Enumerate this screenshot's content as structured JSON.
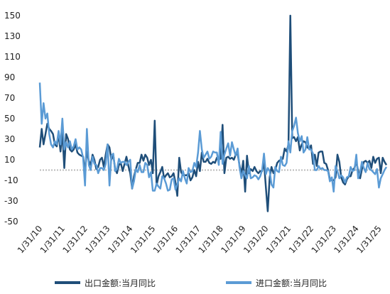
{
  "chart_data": {
    "type": "line",
    "categories": [
      "1/31/10",
      null,
      null,
      null,
      null,
      null,
      null,
      null,
      null,
      null,
      null,
      null,
      "1/31/11",
      null,
      null,
      null,
      null,
      null,
      null,
      null,
      null,
      null,
      null,
      null,
      "1/31/12",
      null,
      null,
      null,
      null,
      null,
      null,
      null,
      null,
      null,
      null,
      null,
      "1/31/13",
      null,
      null,
      null,
      null,
      null,
      null,
      null,
      null,
      null,
      null,
      null,
      "1/31/14",
      null,
      null,
      null,
      null,
      null,
      null,
      null,
      null,
      null,
      null,
      null,
      "1/31/15",
      null,
      null,
      null,
      null,
      null,
      null,
      null,
      null,
      null,
      null,
      null,
      "1/31/16",
      null,
      null,
      null,
      null,
      null,
      null,
      null,
      null,
      null,
      null,
      null,
      "1/31/17",
      null,
      null,
      null,
      null,
      null,
      null,
      null,
      null,
      null,
      null,
      null,
      "1/31/18",
      null,
      null,
      null,
      null,
      null,
      null,
      null,
      null,
      null,
      null,
      null,
      "1/31/19",
      null,
      null,
      null,
      null,
      null,
      null,
      null,
      null,
      null,
      null,
      null,
      "1/31/20",
      null,
      null,
      null,
      null,
      null,
      null,
      null,
      null,
      null,
      null,
      null,
      "1/31/21",
      null,
      null,
      null,
      null,
      null,
      null,
      null,
      null,
      null,
      null,
      null,
      "1/31/22",
      null,
      null,
      null,
      null,
      null,
      null,
      null,
      null,
      null,
      null,
      null,
      "1/31/23",
      null,
      null,
      null,
      null,
      null,
      null,
      null,
      null,
      null,
      null,
      null,
      "1/31/24",
      null,
      null,
      null,
      null,
      null,
      null,
      null,
      null,
      null,
      null,
      null,
      "1/31/25",
      null,
      null,
      null,
      null
    ],
    "series": [
      {
        "name": "出口金额:当月同比",
        "color": "#1f4e79",
        "values": [
          22,
          40,
          25,
          35,
          45,
          40,
          38,
          35,
          25,
          23,
          35,
          18,
          37,
          2,
          35,
          30,
          20,
          18,
          20,
          25,
          17,
          15,
          14,
          13,
          -1,
          18,
          9,
          5,
          15,
          10,
          1,
          3,
          10,
          12,
          3,
          15,
          25,
          22,
          10,
          15,
          1,
          -3,
          5,
          7,
          -1,
          6,
          13,
          4,
          -3,
          -18,
          -6,
          1,
          7,
          7,
          15,
          9,
          15,
          12,
          5,
          10,
          -3,
          48,
          -15,
          -6,
          -2,
          3,
          -8,
          -5,
          -3,
          -7,
          -6,
          -3,
          -12,
          -25,
          12,
          -2,
          -5,
          -5,
          -5,
          -3,
          -10,
          -7,
          0,
          -6,
          8,
          -1,
          17,
          8,
          8,
          11,
          7,
          6,
          8,
          7,
          12,
          11,
          11,
          44,
          -3,
          12,
          13,
          11,
          12,
          10,
          15,
          16,
          5,
          -4,
          9,
          -21,
          14,
          -3,
          1,
          -1,
          3,
          -1,
          -3,
          -1,
          -1,
          8,
          -17,
          -40,
          -7,
          3,
          -3,
          0,
          7,
          9,
          10,
          11,
          21,
          18,
          25,
          150,
          31,
          32,
          28,
          32,
          19,
          25,
          28,
          27,
          22,
          21,
          24,
          6,
          15,
          4,
          17,
          18,
          18,
          7,
          6,
          0,
          -9,
          -10,
          -10,
          -7,
          15,
          8,
          -7,
          -12,
          -14,
          -9,
          -6,
          -6,
          0,
          2,
          8,
          -1,
          -8,
          1,
          8,
          9,
          7,
          9,
          2,
          13,
          7,
          11,
          12,
          -3,
          12,
          8,
          5
        ]
      },
      {
        "name": "进口金额:当月同比",
        "color": "#5b9bd5",
        "values": [
          85,
          45,
          65,
          50,
          55,
          35,
          25,
          22,
          28,
          25,
          38,
          25,
          50,
          20,
          27,
          22,
          28,
          20,
          23,
          30,
          20,
          22,
          20,
          12,
          -15,
          40,
          5,
          0,
          13,
          6,
          5,
          -3,
          2,
          2,
          0,
          6,
          25,
          -15,
          14,
          16,
          -1,
          1,
          11,
          7,
          8,
          8,
          5,
          8,
          10,
          -18,
          -11,
          1,
          -2,
          5,
          -2,
          -2,
          7,
          5,
          -7,
          -2,
          -20,
          -20,
          -13,
          -16,
          -18,
          -6,
          -8,
          -13,
          -20,
          -19,
          -9,
          -8,
          -19,
          -14,
          -8,
          -11,
          -1,
          -8,
          -13,
          2,
          -2,
          -1,
          7,
          3,
          17,
          38,
          20,
          12,
          15,
          18,
          11,
          13,
          18,
          17,
          17,
          5,
          37,
          6,
          15,
          21,
          26,
          14,
          27,
          20,
          14,
          21,
          3,
          -8,
          -1,
          -5,
          -8,
          4,
          -8,
          -7,
          -5,
          -6,
          -9,
          -6,
          0,
          16,
          -4,
          2,
          -1,
          -14,
          -17,
          3,
          -1,
          -2,
          13,
          5,
          4,
          7,
          28,
          17,
          38,
          43,
          51,
          36,
          28,
          33,
          17,
          20,
          32,
          20,
          20,
          16,
          0,
          0,
          4,
          1,
          2,
          0,
          0,
          -1,
          -11,
          -7,
          -21,
          4,
          -1,
          -8,
          -5,
          -7,
          -12,
          -7,
          -6,
          3,
          -1,
          0,
          15,
          -8,
          -2,
          8,
          2,
          -2,
          7,
          1,
          0,
          -2,
          -4,
          1,
          -17,
          -8,
          -4,
          0,
          3
        ]
      }
    ],
    "ylim": [
      -50,
      150
    ],
    "yticks": [
      -50,
      -30,
      -10,
      10,
      30,
      50,
      70,
      90,
      110,
      130,
      150
    ],
    "reference_line": 0,
    "grid": false
  }
}
